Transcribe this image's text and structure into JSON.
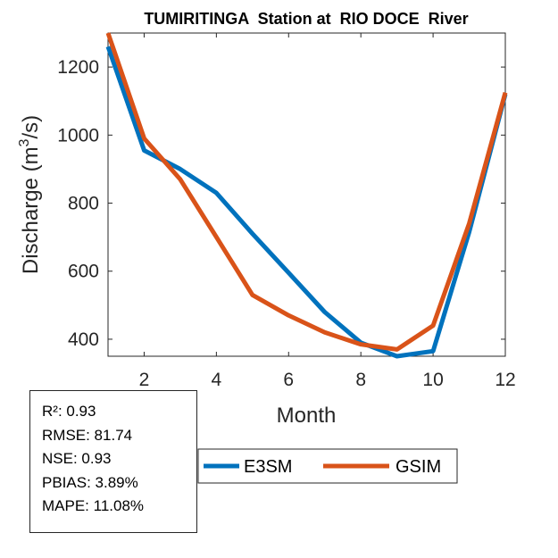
{
  "chart_data": {
    "type": "line",
    "title": "TUMIRITINGA  Station at  RIO DOCE  River",
    "xlabel": "Month",
    "ylabel_prefix": "Discharge (m",
    "ylabel_sup": "3",
    "ylabel_suffix": "/s)",
    "xlim": [
      1,
      12
    ],
    "ylim": [
      350,
      1300
    ],
    "xticks": [
      2,
      4,
      6,
      8,
      10,
      12
    ],
    "yticks": [
      400,
      600,
      800,
      1000,
      1200
    ],
    "x": [
      1,
      2,
      3,
      4,
      5,
      6,
      7,
      8,
      9,
      10,
      11,
      12
    ],
    "series": [
      {
        "name": "E3SM",
        "color": "#0072BD",
        "values": [
          1260,
          955,
          900,
          830,
          710,
          595,
          480,
          390,
          350,
          365,
          715,
          1120
        ]
      },
      {
        "name": "GSIM",
        "color": "#D95319",
        "values": [
          1300,
          990,
          870,
          700,
          530,
          470,
          420,
          385,
          370,
          440,
          740,
          1125
        ]
      }
    ],
    "legend_position": "bottom",
    "grid": false
  },
  "stats": [
    "R²: 0.93",
    "RMSE: 81.74",
    "NSE: 0.93",
    "PBIAS: 3.89%",
    "MAPE: 11.08%"
  ]
}
